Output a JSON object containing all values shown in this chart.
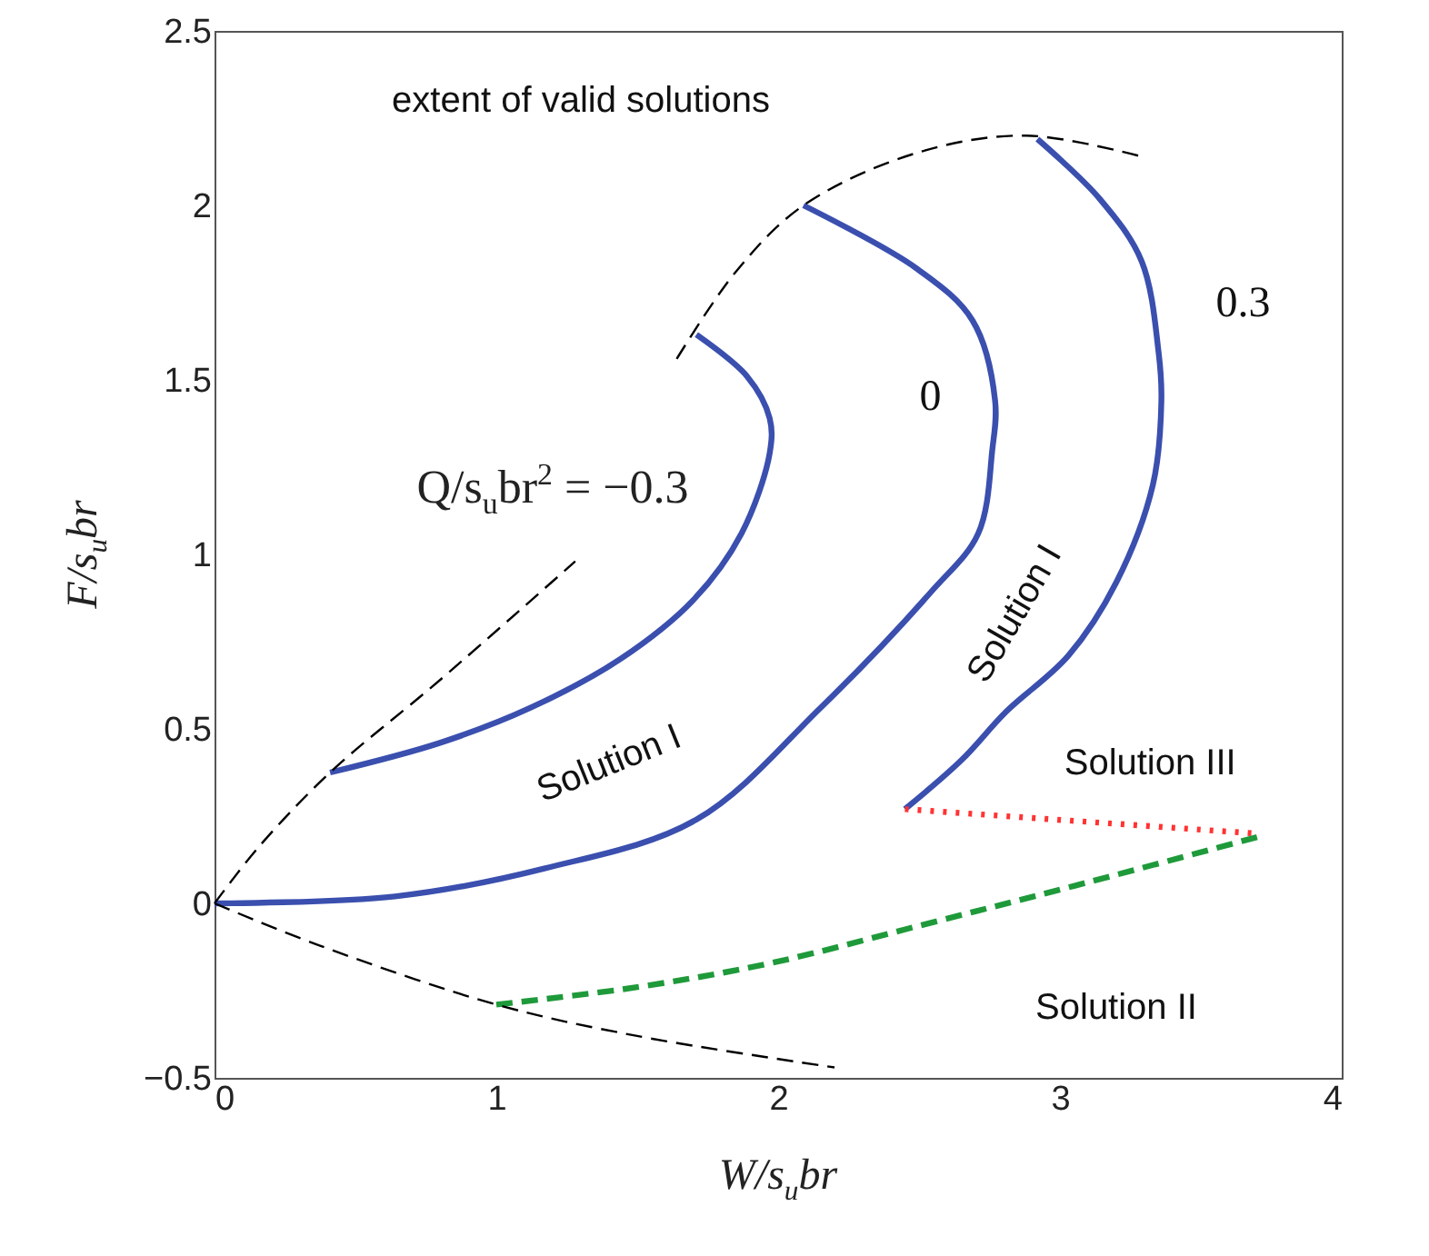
{
  "chart_data": {
    "type": "line",
    "xlabel": "W/s$_{u}$br",
    "ylabel": "F/s$_{u}$br",
    "xlim": [
      0,
      4
    ],
    "xticks": [
      0,
      1,
      2,
      3,
      4
    ],
    "ylim": [
      -0.5,
      2.5
    ],
    "yticks": [
      {
        "value": -0.5,
        "label": "−0.5"
      },
      0,
      0.5,
      1,
      1.5,
      2,
      2.5
    ],
    "grid": false,
    "marker": "none",
    "series": [
      {
        "color": "#3a4fae",
        "line_style": "solid",
        "x": [
          0.41,
          0.8,
          1.12,
          1.44,
          1.7,
          1.87,
          1.97,
          1.97,
          1.89,
          1.71
        ],
        "values": [
          0.375,
          0.46,
          0.56,
          0.7,
          0.87,
          1.06,
          1.29,
          1.39,
          1.51,
          1.63
        ]
      },
      {
        "color": "#3a4fae",
        "line_style": "solid",
        "x": [
          0,
          0.64,
          1.17,
          1.71,
          2.15,
          2.54,
          2.71,
          2.76,
          2.77,
          2.69,
          2.49,
          2.09
        ],
        "values": [
          0,
          0.02,
          0.1,
          0.24,
          0.56,
          0.89,
          1.06,
          1.3,
          1.44,
          1.67,
          1.82,
          2.0
        ]
      },
      {
        "color": "#3a4fae",
        "line_style": "solid",
        "x": [
          2.45,
          2.65,
          2.81,
          3.03,
          3.2,
          3.33,
          3.36,
          3.35,
          3.29,
          3.14,
          2.92
        ],
        "values": [
          0.27,
          0.41,
          0.55,
          0.71,
          0.92,
          1.2,
          1.44,
          1.58,
          1.84,
          2.02,
          2.19
        ]
      },
      {
        "color": "#ff3333",
        "line_style": "dotted",
        "x": [
          2.45,
          3.7
        ],
        "values": [
          0.27,
          0.2
        ]
      },
      {
        "color": "#1f9a3a",
        "line_style": "dashed",
        "x": [
          1.0,
          1.5,
          1.98,
          2.52,
          3.05,
          3.7
        ],
        "values": [
          -0.29,
          -0.24,
          -0.17,
          -0.06,
          0.05,
          0.19
        ]
      },
      {
        "color": "#000000",
        "line_style": "dashed",
        "x": [
          0,
          0.155,
          0.41,
          0.8,
          1.28
        ],
        "values": [
          0,
          0.16,
          0.375,
          0.64,
          0.98
        ]
      },
      {
        "color": "#000000",
        "line_style": "dashed",
        "x": [
          1.64,
          1.85,
          2.09,
          2.49,
          2.88,
          3.29
        ],
        "values": [
          1.56,
          1.81,
          2.0,
          2.15,
          2.2,
          2.14
        ]
      },
      {
        "color": "#000000",
        "line_style": "dashed",
        "x": [
          0,
          0.37,
          1.0,
          1.5,
          2.2
        ],
        "values": [
          0,
          -0.12,
          -0.29,
          -0.38,
          -0.47
        ]
      }
    ],
    "annotations": [
      "extent of valid solutions",
      "Q/s$_{u}$br$^{2}$ = −0.3",
      "0",
      "0.3",
      "Solution I",
      "Solution I",
      "Solution III",
      "Solution II"
    ]
  }
}
